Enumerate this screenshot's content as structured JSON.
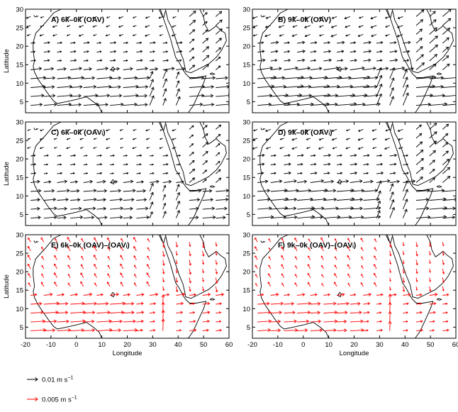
{
  "chart_data": {
    "type": "quiver",
    "x_range": [
      -20,
      60
    ],
    "y_range": [
      2,
      30
    ],
    "x_ticks": [
      -20,
      -10,
      0,
      10,
      20,
      30,
      40,
      50,
      60
    ],
    "y_ticks": [
      5,
      10,
      15,
      20,
      25,
      30
    ],
    "xlabel": "Longitude",
    "ylabel": "Latitude",
    "grid": false,
    "panels": [
      {
        "id": "A",
        "title": "A) 6k–0k (OAV)",
        "color": "#000000",
        "row": 0,
        "col": 0,
        "regime": "full",
        "strength": 1.0
      },
      {
        "id": "B",
        "title": "B) 9k–0k (OAV)",
        "color": "#000000",
        "row": 0,
        "col": 1,
        "regime": "full",
        "strength": 1.3
      },
      {
        "id": "C",
        "title": "C) 6k–0k (OAVᵢ)",
        "color": "#000000",
        "row": 1,
        "col": 0,
        "regime": "full",
        "strength": 0.85
      },
      {
        "id": "D",
        "title": "D) 9k–0k (OAVᵢ)",
        "color": "#000000",
        "row": 1,
        "col": 1,
        "regime": "full",
        "strength": 1.15
      },
      {
        "id": "E",
        "title": "E) 6k–0k (OAV)–(OAVᵢ)",
        "color": "#ff0000",
        "row": 2,
        "col": 0,
        "regime": "diff",
        "strength": 1.0
      },
      {
        "id": "F",
        "title": "F) 9k–0k (OAV)–(OAVᵢ)",
        "color": "#ff0000",
        "row": 2,
        "col": 1,
        "regime": "diff",
        "strength": 0.9
      }
    ],
    "legend": [
      {
        "label": "0.01 m s",
        "exponent": "−1",
        "color": "#000000"
      },
      {
        "label": "0.005 m s",
        "exponent": "−1",
        "color": "#ff0000"
      }
    ]
  }
}
